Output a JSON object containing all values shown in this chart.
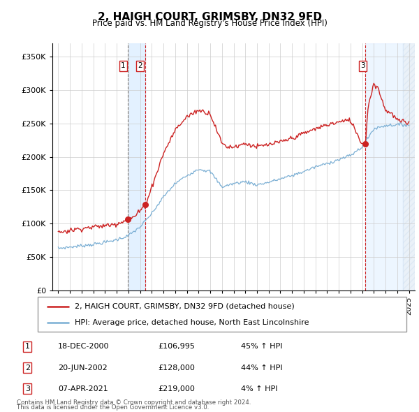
{
  "title": "2, HAIGH COURT, GRIMSBY, DN32 9FD",
  "subtitle": "Price paid vs. HM Land Registry's House Price Index (HPI)",
  "legend_line1": "2, HAIGH COURT, GRIMSBY, DN32 9FD (detached house)",
  "legend_line2": "HPI: Average price, detached house, North East Lincolnshire",
  "footer1": "Contains HM Land Registry data © Crown copyright and database right 2024.",
  "footer2": "This data is licensed under the Open Government Licence v3.0.",
  "transactions": [
    {
      "num": 1,
      "date": "18-DEC-2000",
      "price": 106995,
      "pct": "45%",
      "dir": "↑",
      "x": 2000.96
    },
    {
      "num": 2,
      "date": "20-JUN-2002",
      "price": 128000,
      "pct": "44%",
      "dir": "↑",
      "x": 2002.46
    },
    {
      "num": 3,
      "date": "07-APR-2021",
      "price": 219000,
      "pct": "4%",
      "dir": "↑",
      "x": 2021.27
    }
  ],
  "hpi_color": "#7bafd4",
  "price_color": "#cc2222",
  "shade_color": "#ddeeff",
  "hatch_color": "#ccddee",
  "xlim": [
    1994.5,
    2025.5
  ],
  "ylim": [
    0,
    370000
  ],
  "yticks": [
    0,
    50000,
    100000,
    150000,
    200000,
    250000,
    300000,
    350000
  ],
  "hpi_anchors_x": [
    1995.0,
    1996.0,
    1997.0,
    1998.0,
    1999.0,
    2000.0,
    2001.0,
    2002.0,
    2003.0,
    2004.0,
    2005.0,
    2006.0,
    2007.0,
    2008.0,
    2009.0,
    2010.0,
    2011.0,
    2012.0,
    2013.0,
    2014.0,
    2015.0,
    2016.0,
    2017.0,
    2018.0,
    2019.0,
    2020.0,
    2021.0,
    2022.0,
    2023.0,
    2024.0,
    2025.0
  ],
  "hpi_anchors_y": [
    63000,
    65000,
    67000,
    69000,
    72000,
    76000,
    82000,
    95000,
    115000,
    140000,
    160000,
    172000,
    182000,
    178000,
    155000,
    160000,
    163000,
    158000,
    162000,
    167000,
    172000,
    178000,
    185000,
    190000,
    196000,
    202000,
    215000,
    242000,
    247000,
    248000,
    248000
  ],
  "price_anchors_x": [
    1995.0,
    1996.0,
    1997.0,
    1998.0,
    1999.0,
    2000.0,
    2000.96,
    2001.5,
    2002.46,
    2003.0,
    2004.0,
    2005.0,
    2006.0,
    2007.0,
    2008.0,
    2009.0,
    2009.5,
    2010.0,
    2011.0,
    2012.0,
    2013.0,
    2014.0,
    2015.0,
    2016.0,
    2017.0,
    2018.0,
    2019.0,
    2020.0,
    2021.0,
    2021.27,
    2021.5,
    2022.0,
    2022.3,
    2022.8,
    2023.0,
    2023.5,
    2024.0,
    2025.0
  ],
  "price_anchors_y": [
    87000,
    90000,
    93000,
    95000,
    97000,
    100000,
    106995,
    110000,
    128000,
    155000,
    205000,
    240000,
    260000,
    270000,
    265000,
    220000,
    215000,
    215000,
    220000,
    215000,
    218000,
    222000,
    228000,
    235000,
    242000,
    248000,
    252000,
    255000,
    219000,
    219000,
    275000,
    310000,
    305000,
    280000,
    270000,
    265000,
    255000,
    250000
  ]
}
